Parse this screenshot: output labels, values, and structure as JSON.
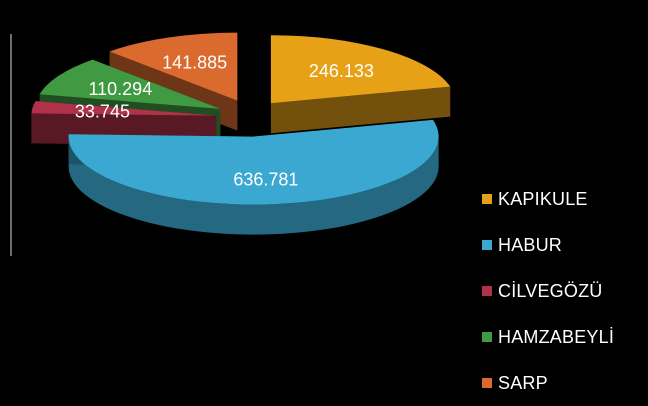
{
  "chart_data": {
    "type": "pie",
    "title": "",
    "categories": [
      "KAPIKULE",
      "HABUR",
      "CİLVEGÖZÜ",
      "HAMZABEYLİ",
      "SARP"
    ],
    "values": [
      246133,
      636781,
      33745,
      110294,
      141885
    ],
    "value_labels": [
      "246.133",
      "636.781",
      "33.745",
      "110.294",
      "141.885"
    ],
    "colors": [
      "#e6a117",
      "#3aa8d0",
      "#b0324a",
      "#3f9a42",
      "#db6a2e"
    ],
    "exploded": true,
    "three_d": true,
    "legend_position": "right"
  }
}
